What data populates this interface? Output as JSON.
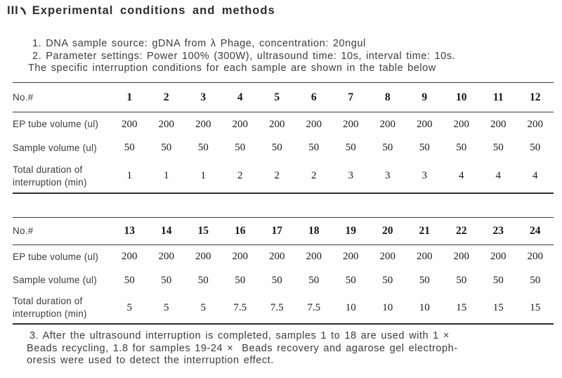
{
  "page": {
    "title_full": "III、 Experimental conditions and methods",
    "title_prefix": "III",
    "title_separator": "、",
    "title_text": "Experimental conditions and methods"
  },
  "intro": {
    "lines": [
      "1. DNA sample source: gDNA from λ Phage, concentration: 20ngul",
      "2. Parameter settings: Power 100% (300W), ultrasound time: 10s, interval time: 10s.",
      "The specific interruption conditions for each sample are shown in the table below"
    ]
  },
  "tables": [
    {
      "header_label": "No.#",
      "columns": [
        "1",
        "2",
        "3",
        "4",
        "5",
        "6",
        "7",
        "8",
        "9",
        "10",
        "11",
        "12"
      ],
      "rows": [
        {
          "label": "EP tube volume (ul)",
          "values": [
            "200",
            "200",
            "200",
            "200",
            "200",
            "200",
            "200",
            "200",
            "200",
            "200",
            "200",
            "200"
          ]
        },
        {
          "label": "Sample volume (ul)",
          "values": [
            "50",
            "50",
            "50",
            "50",
            "50",
            "50",
            "50",
            "50",
            "50",
            "50",
            "50",
            "50"
          ]
        },
        {
          "label": "Total duration of interruption (min)",
          "values": [
            "1",
            "1",
            "1",
            "2",
            "2",
            "2",
            "3",
            "3",
            "3",
            "4",
            "4",
            "4"
          ]
        }
      ]
    },
    {
      "header_label": "No.#",
      "columns": [
        "13",
        "14",
        "15",
        "16",
        "17",
        "18",
        "19",
        "20",
        "21",
        "22",
        "23",
        "24"
      ],
      "rows": [
        {
          "label": "EP tube volume (ul)",
          "values": [
            "200",
            "200",
            "200",
            "200",
            "200",
            "200",
            "200",
            "200",
            "200",
            "200",
            "200",
            "200"
          ]
        },
        {
          "label": "Sample volume (ul)",
          "values": [
            "50",
            "50",
            "50",
            "50",
            "50",
            "50",
            "50",
            "50",
            "50",
            "50",
            "50",
            "50"
          ]
        },
        {
          "label": "Total duration of interruption (min)",
          "values": [
            "5",
            "5",
            "5",
            "7.5",
            "7.5",
            "7.5",
            "10",
            "10",
            "10",
            "15",
            "15",
            "15"
          ]
        }
      ]
    }
  ],
  "closing": {
    "lines": [
      "3. After the ultrasound interruption is completed, samples 1 to 18 are used with 1 ×",
      "Beads recycling, 1.8 for samples 19-24 ×  Beads recovery and agarose gel electroph-",
      "oresis were used to detect the interruption effect."
    ]
  },
  "colors": {
    "body_text": "#3c3c3c",
    "number_text": "#1b1b1b",
    "rule": "#3a3a3a"
  }
}
